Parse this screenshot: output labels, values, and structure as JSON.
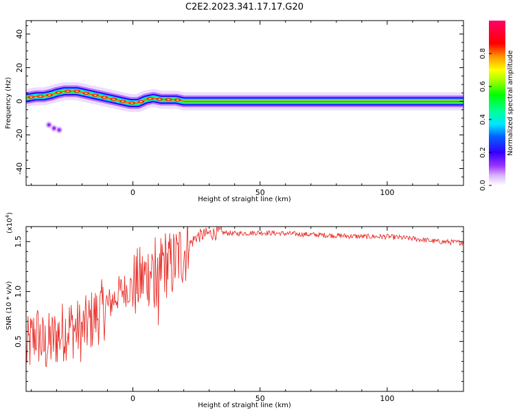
{
  "figure_title": "C2E2.2023.341.17.17.G20",
  "colors": {
    "snr_line": "#e8302a",
    "spectrum_core": "#e8302a"
  },
  "chart_data": [
    {
      "type": "heatmap",
      "title": "C2E2.2023.341.17.17.G20",
      "xlabel": "Height of straight line (km)",
      "ylabel": "Frequency (Hz)",
      "xlim": [
        -42,
        130
      ],
      "ylim": [
        -50,
        48
      ],
      "x_ticks": [
        0,
        50,
        100
      ],
      "y_ticks": [
        -40,
        -20,
        0,
        20,
        40
      ],
      "colorbar": {
        "label": "Normalized spectral amplitude",
        "range": [
          0,
          1
        ],
        "ticks": [
          "0.0",
          "0.2",
          "0.4",
          "0.6",
          "0.8"
        ]
      },
      "ridge": {
        "x": [
          -42,
          -38,
          -35,
          -32,
          -30,
          -27,
          -25,
          -22,
          -19,
          -16,
          -13,
          -10,
          -7,
          -4,
          -1,
          2,
          5,
          8,
          11,
          14,
          17,
          20,
          30,
          60,
          90,
          130
        ],
        "y": [
          2,
          3,
          3,
          4,
          5,
          6,
          6,
          6,
          5,
          4,
          3,
          2,
          1,
          0,
          -1,
          -1,
          1,
          2,
          1,
          1,
          1,
          0,
          0,
          0,
          0,
          0
        ]
      },
      "secondary_blob": {
        "x": [
          -33,
          -31,
          -29
        ],
        "y": [
          -14,
          -16,
          -17
        ]
      }
    },
    {
      "type": "line",
      "title": "",
      "xlabel": "Height of straight line (km)",
      "ylabel": "SNR (10 * v/v)",
      "y_multiplier": "(x10",
      "y_multiplier_exp": "4",
      "xlim": [
        -42,
        130
      ],
      "ylim": [
        0,
        16500
      ],
      "x_ticks": [
        0,
        50,
        100
      ],
      "y_ticks": [
        "0.5",
        "1.0",
        "1.5"
      ],
      "series": [
        {
          "values_x": [
            -42,
            -38,
            -35,
            -32,
            -30,
            -25,
            -20,
            -15,
            -10,
            -5,
            0,
            5,
            8,
            10,
            12,
            15,
            18,
            20,
            25,
            30,
            35,
            40,
            50,
            60,
            70,
            80,
            90,
            100,
            110,
            120,
            130
          ],
          "values_y": [
            4000,
            6000,
            4500,
            5000,
            5500,
            6500,
            6000,
            7500,
            8500,
            10000,
            10500,
            11500,
            12500,
            12000,
            13000,
            12500,
            13500,
            14000,
            15500,
            15800,
            15900,
            15800,
            15900,
            15800,
            15700,
            15600,
            15500,
            15500,
            15300,
            15000,
            14900
          ]
        }
      ]
    }
  ]
}
